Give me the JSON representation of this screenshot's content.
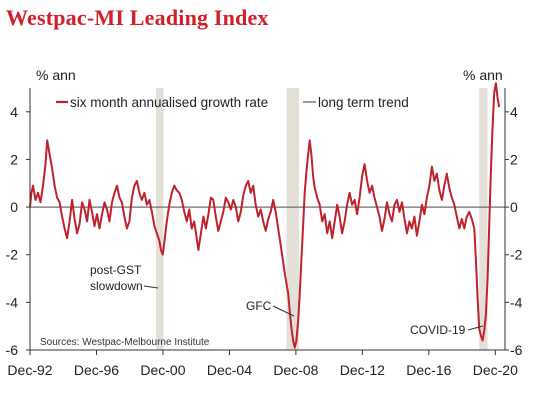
{
  "chart_data": {
    "type": "line",
    "title": "Westpac-MI Leading Index",
    "y_left_label": "% ann",
    "y_right_label": "% ann",
    "ylim": [
      -6,
      5
    ],
    "y_ticks": [
      4,
      2,
      0,
      -2,
      -4,
      -6
    ],
    "x_range": [
      1992.917,
      2021.5
    ],
    "x_ticks": [
      {
        "label": "Dec-92",
        "x": 1992.917
      },
      {
        "label": "Dec-96",
        "x": 1996.917
      },
      {
        "label": "Dec-00",
        "x": 2000.917
      },
      {
        "label": "Dec-04",
        "x": 2004.917
      },
      {
        "label": "Dec-08",
        "x": 2008.917
      },
      {
        "label": "Dec-12",
        "x": 2012.917
      },
      {
        "label": "Dec-16",
        "x": 2016.917
      },
      {
        "label": "Dec-20",
        "x": 2020.917
      }
    ],
    "series": [
      {
        "name": "six month annualised growth rate",
        "color": "#c0222c",
        "points": [
          [
            1992.917,
            0.0
          ],
          [
            1993.0,
            0.6
          ],
          [
            1993.1,
            0.9
          ],
          [
            1993.25,
            0.3
          ],
          [
            1993.4,
            0.6
          ],
          [
            1993.55,
            0.2
          ],
          [
            1993.7,
            0.9
          ],
          [
            1993.85,
            1.8
          ],
          [
            1993.95,
            2.8
          ],
          [
            1994.1,
            2.2
          ],
          [
            1994.25,
            1.6
          ],
          [
            1994.4,
            0.9
          ],
          [
            1994.55,
            0.4
          ],
          [
            1994.7,
            0.2
          ],
          [
            1994.85,
            -0.4
          ],
          [
            1995.0,
            -0.9
          ],
          [
            1995.15,
            -1.3
          ],
          [
            1995.3,
            -0.6
          ],
          [
            1995.45,
            0.3
          ],
          [
            1995.6,
            -0.5
          ],
          [
            1995.75,
            -1.1
          ],
          [
            1995.9,
            -0.7
          ],
          [
            1996.05,
            0.2
          ],
          [
            1996.2,
            -0.1
          ],
          [
            1996.35,
            -0.6
          ],
          [
            1996.5,
            0.3
          ],
          [
            1996.65,
            -0.2
          ],
          [
            1996.8,
            -0.8
          ],
          [
            1996.95,
            -0.3
          ],
          [
            1997.1,
            -0.9
          ],
          [
            1997.25,
            -0.3
          ],
          [
            1997.4,
            0.2
          ],
          [
            1997.55,
            -0.1
          ],
          [
            1997.7,
            -0.6
          ],
          [
            1997.85,
            0.2
          ],
          [
            1998.0,
            0.6
          ],
          [
            1998.15,
            0.9
          ],
          [
            1998.3,
            0.4
          ],
          [
            1998.45,
            0.2
          ],
          [
            1998.6,
            -0.4
          ],
          [
            1998.75,
            -0.9
          ],
          [
            1998.9,
            -0.6
          ],
          [
            1999.05,
            0.4
          ],
          [
            1999.2,
            0.9
          ],
          [
            1999.35,
            1.1
          ],
          [
            1999.5,
            0.6
          ],
          [
            1999.65,
            0.3
          ],
          [
            1999.8,
            0.6
          ],
          [
            1999.95,
            0.1
          ],
          [
            2000.1,
            0.3
          ],
          [
            2000.25,
            -0.2
          ],
          [
            2000.4,
            -0.8
          ],
          [
            2000.55,
            -1.1
          ],
          [
            2000.7,
            -1.4
          ],
          [
            2000.8,
            -1.8
          ],
          [
            2000.9,
            -2.0
          ],
          [
            2001.0,
            -1.5
          ],
          [
            2001.15,
            -0.6
          ],
          [
            2001.3,
            0.1
          ],
          [
            2001.45,
            0.6
          ],
          [
            2001.6,
            0.9
          ],
          [
            2001.75,
            0.7
          ],
          [
            2001.9,
            0.6
          ],
          [
            2002.05,
            0.3
          ],
          [
            2002.2,
            -0.2
          ],
          [
            2002.35,
            -0.6
          ],
          [
            2002.5,
            -0.1
          ],
          [
            2002.65,
            -0.9
          ],
          [
            2002.8,
            -0.6
          ],
          [
            2002.95,
            -1.3
          ],
          [
            2003.05,
            -1.8
          ],
          [
            2003.2,
            -1.1
          ],
          [
            2003.35,
            -0.4
          ],
          [
            2003.5,
            -0.9
          ],
          [
            2003.65,
            -0.3
          ],
          [
            2003.8,
            0.4
          ],
          [
            2003.95,
            0.3
          ],
          [
            2004.1,
            -0.4
          ],
          [
            2004.25,
            -1.0
          ],
          [
            2004.4,
            -0.6
          ],
          [
            2004.55,
            -0.2
          ],
          [
            2004.7,
            0.4
          ],
          [
            2004.85,
            0.2
          ],
          [
            2005.0,
            -0.1
          ],
          [
            2005.15,
            0.3
          ],
          [
            2005.3,
            0.0
          ],
          [
            2005.45,
            -0.6
          ],
          [
            2005.6,
            -0.2
          ],
          [
            2005.75,
            0.5
          ],
          [
            2005.9,
            0.9
          ],
          [
            2006.05,
            1.1
          ],
          [
            2006.2,
            0.6
          ],
          [
            2006.35,
            0.9
          ],
          [
            2006.5,
            0.1
          ],
          [
            2006.65,
            -0.4
          ],
          [
            2006.8,
            -0.1
          ],
          [
            2006.95,
            -0.6
          ],
          [
            2007.1,
            -1.0
          ],
          [
            2007.25,
            -0.5
          ],
          [
            2007.4,
            -0.2
          ],
          [
            2007.55,
            0.3
          ],
          [
            2007.7,
            -0.2
          ],
          [
            2007.85,
            -0.9
          ],
          [
            2008.0,
            -1.6
          ],
          [
            2008.15,
            -2.3
          ],
          [
            2008.3,
            -3.0
          ],
          [
            2008.45,
            -3.6
          ],
          [
            2008.55,
            -4.4
          ],
          [
            2008.65,
            -5.1
          ],
          [
            2008.75,
            -5.6
          ],
          [
            2008.85,
            -5.9
          ],
          [
            2008.95,
            -5.6
          ],
          [
            2009.05,
            -4.8
          ],
          [
            2009.15,
            -3.6
          ],
          [
            2009.25,
            -2.2
          ],
          [
            2009.35,
            -0.8
          ],
          [
            2009.45,
            0.6
          ],
          [
            2009.55,
            1.5
          ],
          [
            2009.65,
            2.2
          ],
          [
            2009.75,
            2.8
          ],
          [
            2009.85,
            2.2
          ],
          [
            2009.95,
            1.3
          ],
          [
            2010.05,
            0.8
          ],
          [
            2010.2,
            0.4
          ],
          [
            2010.35,
            0.1
          ],
          [
            2010.5,
            -0.6
          ],
          [
            2010.65,
            -0.3
          ],
          [
            2010.8,
            -1.1
          ],
          [
            2010.95,
            -0.6
          ],
          [
            2011.1,
            -1.3
          ],
          [
            2011.25,
            -0.6
          ],
          [
            2011.4,
            0.1
          ],
          [
            2011.55,
            -0.4
          ],
          [
            2011.7,
            -1.1
          ],
          [
            2011.85,
            -0.6
          ],
          [
            2012.0,
            0.1
          ],
          [
            2012.15,
            0.6
          ],
          [
            2012.3,
            0.1
          ],
          [
            2012.45,
            0.3
          ],
          [
            2012.6,
            -0.3
          ],
          [
            2012.75,
            0.4
          ],
          [
            2012.9,
            1.3
          ],
          [
            2013.05,
            1.8
          ],
          [
            2013.2,
            1.1
          ],
          [
            2013.35,
            0.6
          ],
          [
            2013.5,
            0.9
          ],
          [
            2013.65,
            0.4
          ],
          [
            2013.8,
            0.0
          ],
          [
            2013.95,
            -0.4
          ],
          [
            2014.1,
            -1.0
          ],
          [
            2014.25,
            -0.5
          ],
          [
            2014.4,
            0.2
          ],
          [
            2014.55,
            -0.3
          ],
          [
            2014.7,
            -0.6
          ],
          [
            2014.85,
            0.1
          ],
          [
            2015.0,
            0.3
          ],
          [
            2015.15,
            -0.2
          ],
          [
            2015.3,
            0.2
          ],
          [
            2015.45,
            -0.5
          ],
          [
            2015.6,
            -1.1
          ],
          [
            2015.75,
            -0.6
          ],
          [
            2015.9,
            -0.9
          ],
          [
            2016.05,
            -0.4
          ],
          [
            2016.2,
            -1.2
          ],
          [
            2016.35,
            -0.6
          ],
          [
            2016.5,
            0.1
          ],
          [
            2016.65,
            -0.3
          ],
          [
            2016.8,
            0.4
          ],
          [
            2016.95,
            0.9
          ],
          [
            2017.1,
            1.7
          ],
          [
            2017.25,
            1.1
          ],
          [
            2017.4,
            1.4
          ],
          [
            2017.55,
            0.7
          ],
          [
            2017.7,
            0.3
          ],
          [
            2017.85,
            0.9
          ],
          [
            2018.0,
            1.4
          ],
          [
            2018.15,
            0.8
          ],
          [
            2018.3,
            0.4
          ],
          [
            2018.45,
            0.1
          ],
          [
            2018.6,
            -0.4
          ],
          [
            2018.75,
            -0.9
          ],
          [
            2018.9,
            -0.5
          ],
          [
            2019.05,
            -0.9
          ],
          [
            2019.2,
            -0.4
          ],
          [
            2019.35,
            -0.2
          ],
          [
            2019.5,
            -0.5
          ],
          [
            2019.65,
            -0.9
          ],
          [
            2019.75,
            -2.2
          ],
          [
            2019.85,
            -3.8
          ],
          [
            2019.95,
            -5.1
          ],
          [
            2020.05,
            -5.4
          ],
          [
            2020.15,
            -5.6
          ],
          [
            2020.25,
            -5.2
          ],
          [
            2020.35,
            -4.5
          ],
          [
            2020.45,
            -3.0
          ],
          [
            2020.55,
            -0.8
          ],
          [
            2020.65,
            1.5
          ],
          [
            2020.75,
            3.3
          ],
          [
            2020.85,
            4.8
          ],
          [
            2020.95,
            5.2
          ],
          [
            2021.05,
            4.6
          ],
          [
            2021.15,
            4.2
          ]
        ]
      },
      {
        "name": "long term trend",
        "color": "#6e6e6e",
        "points": [
          [
            1992.917,
            0
          ],
          [
            2021.5,
            0
          ]
        ]
      }
    ],
    "recession_bands": [
      {
        "from": 2000.5,
        "to": 2000.95
      },
      {
        "from": 2008.35,
        "to": 2009.1
      },
      {
        "from": 2019.95,
        "to": 2020.45
      }
    ],
    "annotations": [
      {
        "text": "post-GST",
        "pos": "left of 2000 band"
      },
      {
        "text": "slowdown",
        "pos": "left of 2000 band"
      },
      {
        "text": "GFC",
        "pos": "left of 2008 trough"
      },
      {
        "text": "COVID-19",
        "pos": "left of 2020 trough"
      }
    ],
    "source": "Sources: Westpac-Melbourne Institute",
    "legend_position": "top-left",
    "grid": false
  }
}
